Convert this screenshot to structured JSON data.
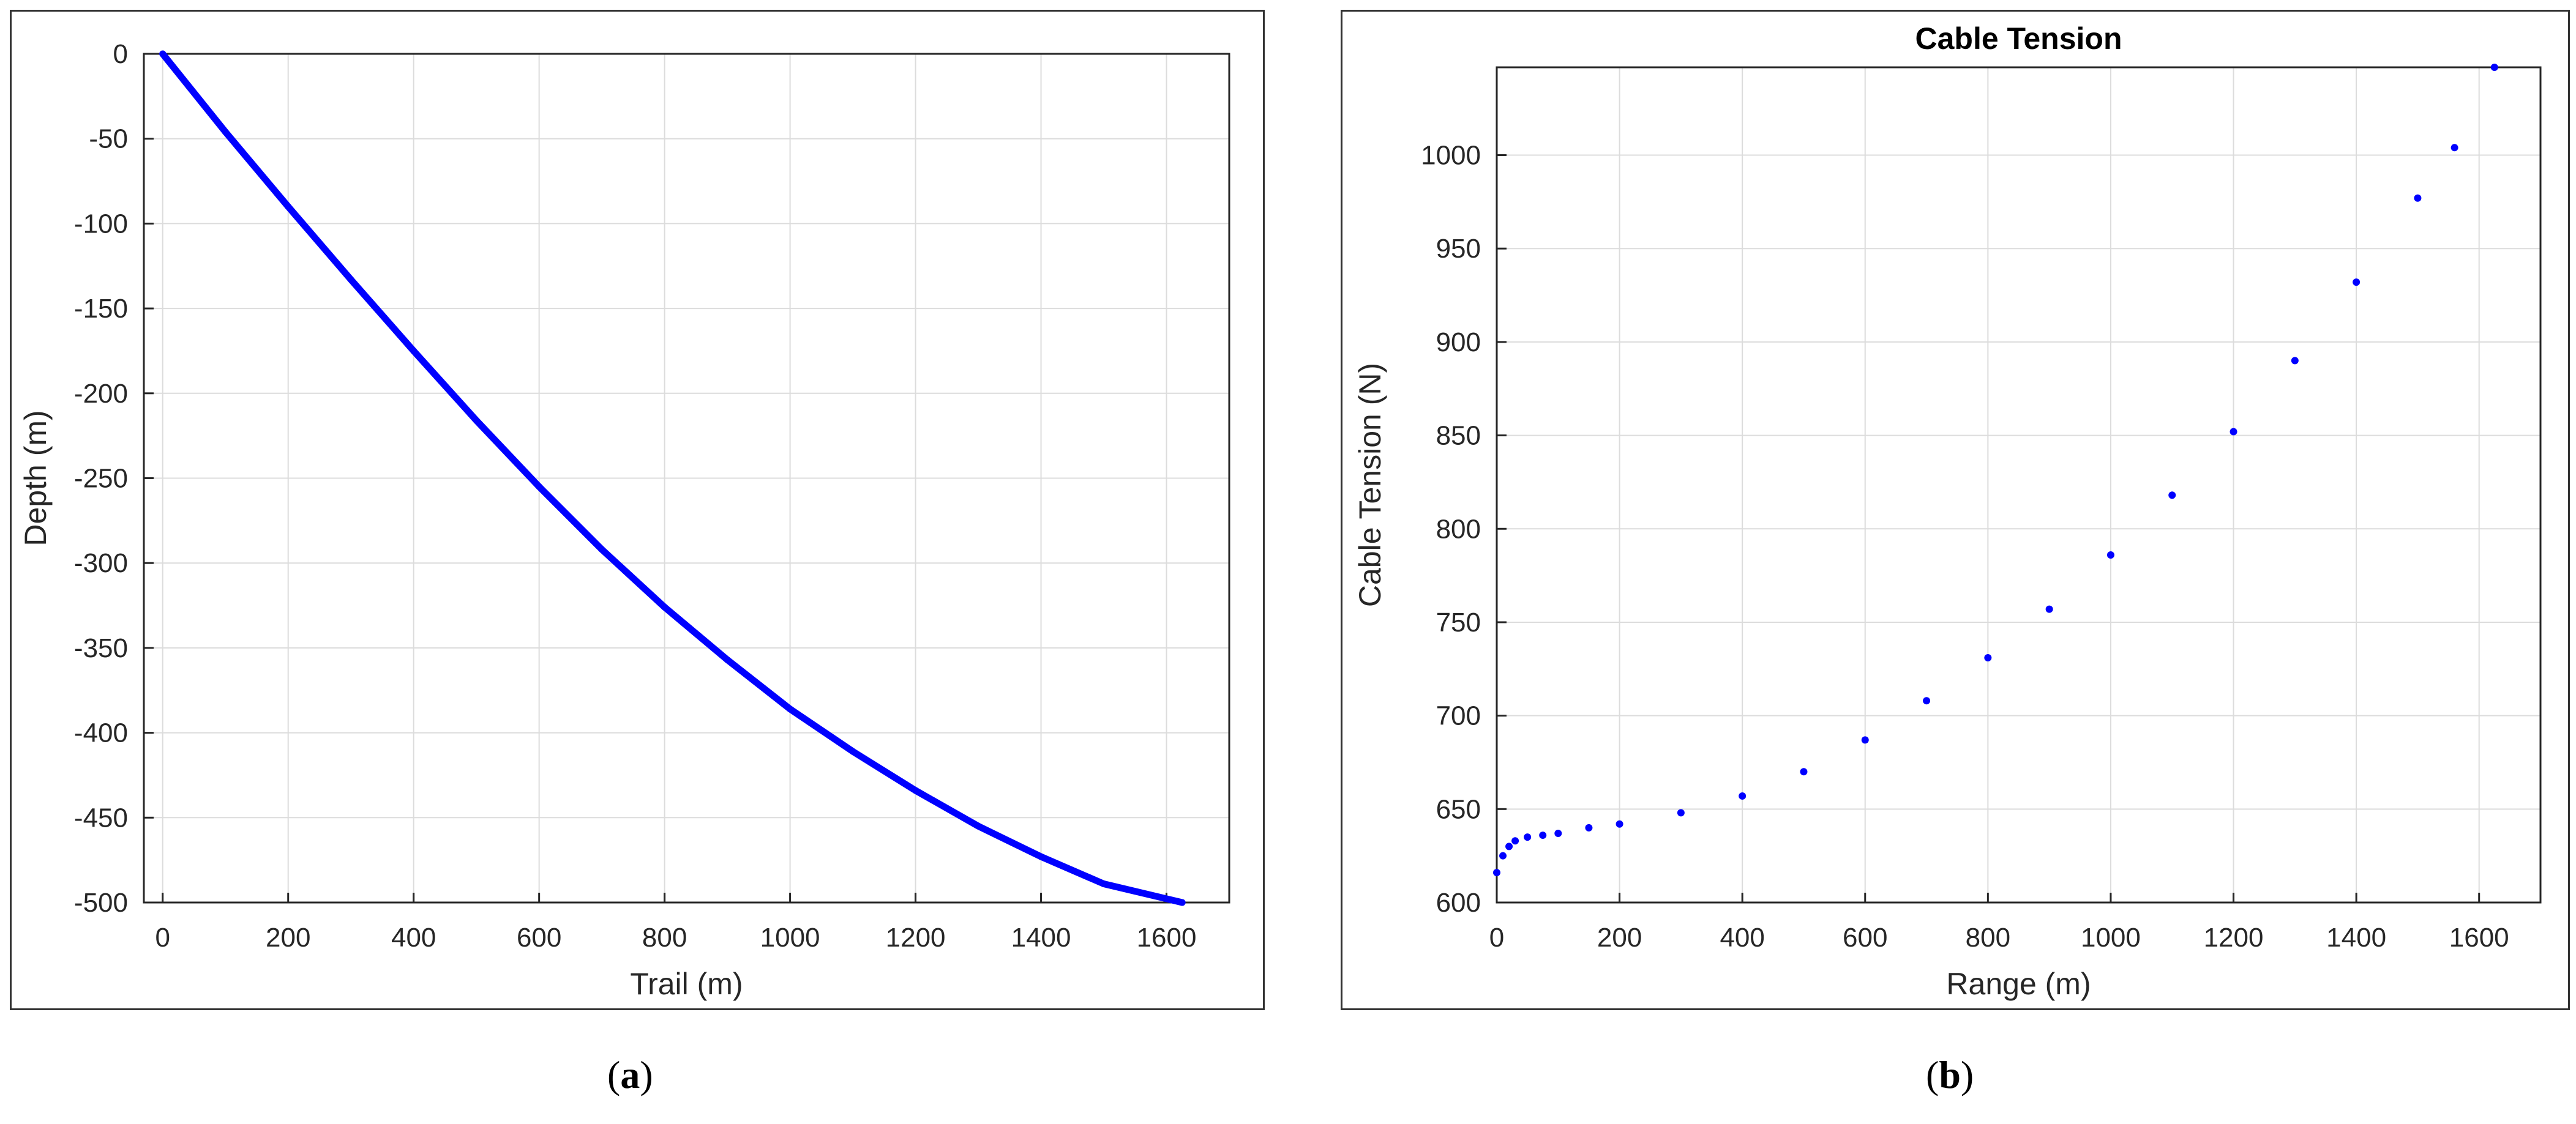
{
  "chart_data": [
    {
      "type": "line",
      "title": "",
      "xlabel": "Trail (m)",
      "ylabel": "Depth (m)",
      "xlim": [
        -30,
        1700
      ],
      "ylim": [
        -500,
        0
      ],
      "xticks": [
        0,
        200,
        400,
        600,
        800,
        1000,
        1200,
        1400,
        1600
      ],
      "yticks": [
        0,
        -50,
        -100,
        -150,
        -200,
        -250,
        -300,
        -350,
        -400,
        -450,
        -500
      ],
      "grid": true,
      "series": [
        {
          "color": "#0000ff",
          "x": [
            0,
            100,
            200,
            300,
            400,
            500,
            600,
            700,
            800,
            900,
            1000,
            1100,
            1200,
            1300,
            1400,
            1500,
            1625
          ],
          "y": [
            0,
            -46,
            -90,
            -133,
            -175,
            -216,
            -255,
            -292,
            -326,
            -357,
            -386,
            -411,
            -434,
            -455,
            -473,
            -489,
            -500
          ]
        }
      ]
    },
    {
      "type": "scatter",
      "title": "Cable Tension",
      "xlabel": "Range (m)",
      "ylabel": "Cable Tension (N)",
      "xlim": [
        0,
        1700
      ],
      "ylim": [
        600,
        1047
      ],
      "xticks": [
        0,
        200,
        400,
        600,
        800,
        1000,
        1200,
        1400,
        1600
      ],
      "yticks": [
        600,
        650,
        700,
        750,
        800,
        850,
        900,
        950,
        1000
      ],
      "grid": true,
      "series": [
        {
          "color": "#0000ff",
          "x": [
            0,
            10,
            20,
            30,
            50,
            75,
            100,
            150,
            200,
            300,
            400,
            500,
            600,
            700,
            800,
            900,
            1000,
            1100,
            1200,
            1300,
            1400,
            1500,
            1560,
            1625
          ],
          "y": [
            616,
            625,
            630,
            633,
            635,
            636,
            637,
            640,
            642,
            648,
            657,
            670,
            687,
            708,
            731,
            757,
            786,
            818,
            852,
            890,
            932,
            977,
            1004,
            1047
          ]
        }
      ]
    }
  ],
  "captions": {
    "a": {
      "open": "(",
      "letter": "a",
      "close": ")"
    },
    "b": {
      "open": "(",
      "letter": "b",
      "close": ")"
    }
  }
}
